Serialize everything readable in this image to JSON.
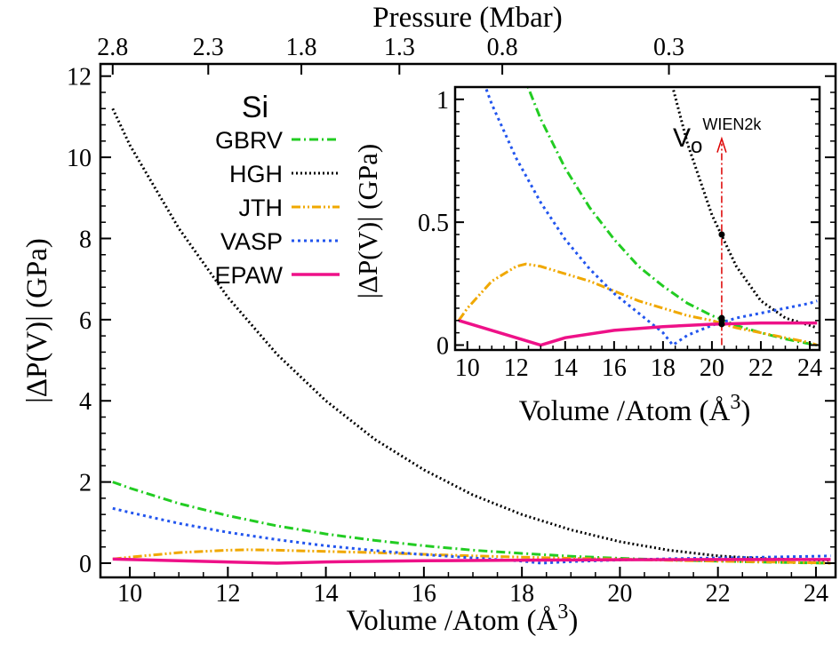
{
  "chart_data": [
    {
      "id": "main",
      "type": "line",
      "title": "Si",
      "xlabel": "Volume /Atom (Å",
      "xlabel_sup": "3",
      "xlabel_close": ")",
      "ylabel": "|ΔP(V)| (GPa)",
      "top_axis_label": "Pressure (Mbar)",
      "top_ticks": [
        "2.8",
        "2.3",
        "1.8",
        "1.3",
        "0.8",
        "0.3"
      ],
      "top_tick_volumes": [
        9.65,
        11.6,
        13.5,
        15.5,
        17.6,
        21.0
      ],
      "xlim": [
        9.4,
        24.4
      ],
      "ylim": [
        -0.35,
        12.3
      ],
      "xticks": [
        10,
        12,
        14,
        16,
        18,
        20,
        22,
        24
      ],
      "yticks": [
        0,
        2,
        4,
        6,
        8,
        10,
        12
      ],
      "legend_position": "top-left",
      "series": [
        {
          "name": "GBRV",
          "color": "#22cc22",
          "dash": "10,4,2,4",
          "points": [
            [
              9.65,
              2.0
            ],
            [
              10,
              1.85
            ],
            [
              11,
              1.47
            ],
            [
              12,
              1.17
            ],
            [
              13,
              0.92
            ],
            [
              14,
              0.72
            ],
            [
              15,
              0.56
            ],
            [
              16,
              0.43
            ],
            [
              17,
              0.32
            ],
            [
              18,
              0.24
            ],
            [
              19,
              0.17
            ],
            [
              20,
              0.12
            ],
            [
              21,
              0.08
            ],
            [
              22,
              0.05
            ],
            [
              23,
              0.025
            ],
            [
              24,
              0.005
            ],
            [
              24.3,
              0.0
            ]
          ]
        },
        {
          "name": "HGH",
          "color": "#000000",
          "dash": "2,3",
          "points": [
            [
              9.65,
              11.2
            ],
            [
              10,
              10.3
            ],
            [
              11,
              8.25
            ],
            [
              12,
              6.55
            ],
            [
              13,
              5.15
            ],
            [
              14,
              4.0
            ],
            [
              15,
              3.05
            ],
            [
              16,
              2.3
            ],
            [
              17,
              1.68
            ],
            [
              18,
              1.2
            ],
            [
              19,
              0.82
            ],
            [
              20,
              0.53
            ],
            [
              21,
              0.32
            ],
            [
              22,
              0.18
            ],
            [
              23,
              0.11
            ],
            [
              24,
              0.08
            ],
            [
              24.3,
              0.07
            ]
          ]
        },
        {
          "name": "JTH",
          "color": "#f0a800",
          "dash": "10,3,2,3,2,3",
          "points": [
            [
              9.65,
              0.1
            ],
            [
              10,
              0.15
            ],
            [
              11,
              0.26
            ],
            [
              12,
              0.32
            ],
            [
              12.4,
              0.33
            ],
            [
              13,
              0.32
            ],
            [
              14,
              0.29
            ],
            [
              15,
              0.26
            ],
            [
              16,
              0.22
            ],
            [
              17,
              0.18
            ],
            [
              18,
              0.15
            ],
            [
              19,
              0.12
            ],
            [
              20,
              0.1
            ],
            [
              21,
              0.07
            ],
            [
              22,
              0.05
            ],
            [
              23,
              0.03
            ],
            [
              24,
              0.01
            ],
            [
              24.3,
              0.0
            ]
          ]
        },
        {
          "name": "VASP",
          "color": "#2255ee",
          "dash": "3,4",
          "points": [
            [
              9.65,
              1.35
            ],
            [
              10,
              1.25
            ],
            [
              11,
              0.98
            ],
            [
              12,
              0.76
            ],
            [
              13,
              0.58
            ],
            [
              14,
              0.43
            ],
            [
              15,
              0.31
            ],
            [
              16,
              0.21
            ],
            [
              17,
              0.13
            ],
            [
              18,
              0.05
            ],
            [
              18.4,
              0.0
            ],
            [
              19,
              0.04
            ],
            [
              20,
              0.08
            ],
            [
              21,
              0.11
            ],
            [
              22,
              0.13
            ],
            [
              23,
              0.15
            ],
            [
              24,
              0.17
            ],
            [
              24.3,
              0.18
            ]
          ]
        },
        {
          "name": "EPAW",
          "color": "#ee1188",
          "dash": "",
          "points": [
            [
              9.65,
              0.1
            ],
            [
              13,
              0.0
            ],
            [
              14,
              0.03
            ],
            [
              16,
              0.06
            ],
            [
              18,
              0.075
            ],
            [
              20,
              0.085
            ],
            [
              22,
              0.09
            ],
            [
              24.3,
              0.09
            ]
          ]
        }
      ]
    },
    {
      "id": "inset",
      "type": "line",
      "xlabel": "Volume /Atom (Å",
      "xlabel_sup": "3",
      "xlabel_close": ")",
      "ylabel": "|ΔP(V)| (GPa)",
      "xlim": [
        9.5,
        24.4
      ],
      "ylim": [
        -0.02,
        1.05
      ],
      "xticks": [
        10,
        12,
        14,
        16,
        18,
        20,
        22,
        24
      ],
      "yticks": [
        0,
        0.5,
        1
      ],
      "ytick_labels": [
        "0",
        "0.5",
        "1"
      ],
      "annotation": {
        "text": "V",
        "sub": "o",
        "sup": "WIEN2k",
        "volume": 20.4,
        "color": "#dd0000"
      },
      "marker_points": [
        [
          20.4,
          0.45
        ],
        [
          20.4,
          0.11
        ],
        [
          20.4,
          0.1
        ],
        [
          20.4,
          0.085
        ]
      ]
    }
  ]
}
